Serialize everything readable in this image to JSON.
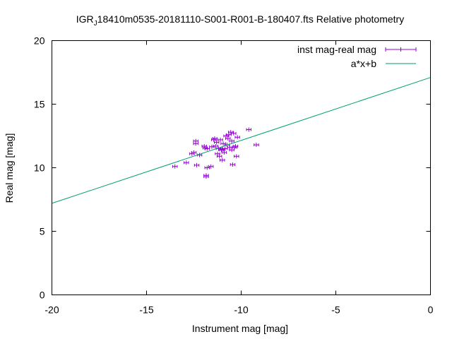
{
  "chart_data": {
    "type": "scatter",
    "title_prefix": "IGR",
    "title_sub": "J",
    "title_rest": "18410m0535-20181110-S001-R001-B-180407.fts Relative photometry",
    "xlabel": "Instrument mag [mag]",
    "ylabel": "Real mag [mag]",
    "xlim": [
      -20,
      0
    ],
    "ylim": [
      0,
      20
    ],
    "xticks": [
      {
        "v": -20,
        "label": "-20"
      },
      {
        "v": -15,
        "label": "-15"
      },
      {
        "v": -10,
        "label": "-10"
      },
      {
        "v": -5,
        "label": "-5"
      },
      {
        "v": 0,
        "label": "0"
      }
    ],
    "yticks": [
      {
        "v": 0,
        "label": "0"
      },
      {
        "v": 5,
        "label": "5"
      },
      {
        "v": 10,
        "label": "10"
      },
      {
        "v": 15,
        "label": "15"
      },
      {
        "v": 20,
        "label": "20"
      }
    ],
    "grid": false,
    "legend_position": "top-right",
    "legend": [
      {
        "label": "inst mag-real mag",
        "color": "#9400d3",
        "kind": "errorbar"
      },
      {
        "label": "a*x+b",
        "color": "#009e73",
        "kind": "line"
      }
    ],
    "series": [
      {
        "name": "inst mag-real mag",
        "color": "#9400d3",
        "points": [
          [
            -13.5,
            10.1
          ],
          [
            -12.9,
            10.4
          ],
          [
            -12.6,
            11.1
          ],
          [
            -12.5,
            11.2
          ],
          [
            -12.4,
            11.9
          ],
          [
            -12.4,
            12.1
          ],
          [
            -12.35,
            10.2
          ],
          [
            -12.2,
            11.0
          ],
          [
            -11.95,
            11.7
          ],
          [
            -11.9,
            11.55
          ],
          [
            -11.85,
            9.4
          ],
          [
            -11.85,
            9.3
          ],
          [
            -11.8,
            11.5
          ],
          [
            -11.8,
            10.0
          ],
          [
            -11.6,
            10.1
          ],
          [
            -11.55,
            11.65
          ],
          [
            -11.45,
            12.2
          ],
          [
            -11.4,
            12.3
          ],
          [
            -11.35,
            11.7
          ],
          [
            -11.3,
            12.0
          ],
          [
            -11.25,
            11.1
          ],
          [
            -11.2,
            11.5
          ],
          [
            -11.15,
            10.9
          ],
          [
            -11.1,
            12.2
          ],
          [
            -11.05,
            11.4
          ],
          [
            -11.0,
            11.45
          ],
          [
            -11.0,
            10.6
          ],
          [
            -10.95,
            11.9
          ],
          [
            -10.9,
            11.2
          ],
          [
            -10.85,
            11.5
          ],
          [
            -10.8,
            12.5
          ],
          [
            -10.75,
            11.8
          ],
          [
            -10.7,
            12.3
          ],
          [
            -10.65,
            12.6
          ],
          [
            -10.6,
            11.6
          ],
          [
            -10.55,
            12.8
          ],
          [
            -10.5,
            12.1
          ],
          [
            -10.5,
            11.4
          ],
          [
            -10.45,
            10.25
          ],
          [
            -10.4,
            12.7
          ],
          [
            -10.35,
            11.6
          ],
          [
            -10.3,
            11.7
          ],
          [
            -10.25,
            10.9
          ],
          [
            -10.2,
            12.4
          ],
          [
            -9.6,
            13.0
          ],
          [
            -9.2,
            11.8
          ]
        ],
        "xerr": 0.12
      },
      {
        "name": "a*x+b",
        "color": "#009e73",
        "type": "line",
        "x": [
          -20,
          0
        ],
        "y": [
          7.2,
          17.1
        ]
      }
    ]
  }
}
